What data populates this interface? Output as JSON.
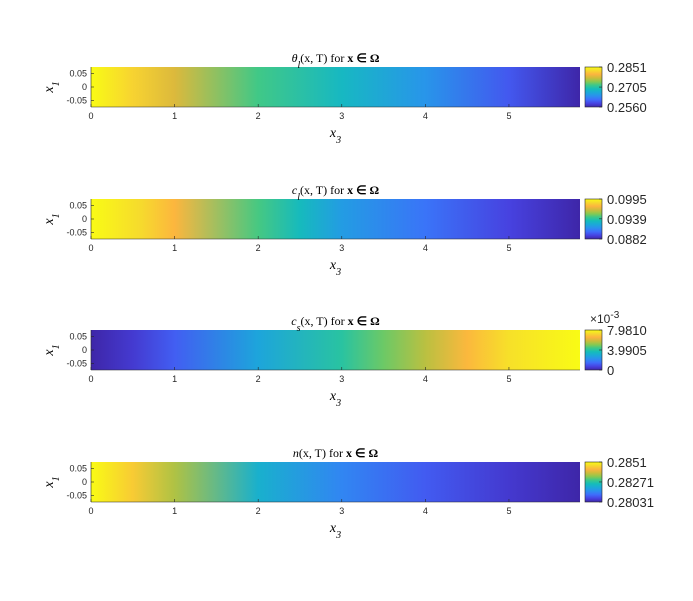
{
  "chart_data": [
    {
      "type": "heatmap",
      "title": "θ_l(x, T) for x ∈ Ω",
      "title_parts": {
        "symbol": "θ",
        "sub": "l",
        "args": "(x, T)",
        "for_text": "for",
        "set_text": "x ∈ Ω"
      },
      "xlabel": "x3",
      "xlabel_parts": {
        "var": "x",
        "sub": "3"
      },
      "ylabel": "x1",
      "ylabel_parts": {
        "var": "x",
        "sub": "1"
      },
      "xlim": [
        0,
        5.85
      ],
      "ylim": [
        -0.075,
        0.075
      ],
      "x_ticks": [
        "0",
        "1",
        "2",
        "3",
        "4",
        "5"
      ],
      "y_ticks": [
        "0.05",
        "0",
        "-0.05"
      ],
      "colorbar": {
        "min": 0.256,
        "max": 0.2851,
        "ticks": [
          "0.2851",
          "0.2705",
          "0.2560"
        ],
        "multiplier": ""
      },
      "profile_x": [
        0,
        0.5,
        1,
        2,
        3,
        4,
        5,
        5.85
      ],
      "profile_values": [
        0.2851,
        0.282,
        0.278,
        0.272,
        0.2685,
        0.2645,
        0.26,
        0.256
      ]
    },
    {
      "type": "heatmap",
      "title": "c_l(x, T) for x ∈ Ω",
      "title_parts": {
        "symbol": "c",
        "sub": "l",
        "args": "(x, T)",
        "for_text": "for",
        "set_text": "x ∈ Ω"
      },
      "xlabel": "x3",
      "xlabel_parts": {
        "var": "x",
        "sub": "3"
      },
      "ylabel": "x1",
      "ylabel_parts": {
        "var": "x",
        "sub": "1"
      },
      "xlim": [
        0,
        5.85
      ],
      "ylim": [
        -0.075,
        0.075
      ],
      "x_ticks": [
        "0",
        "1",
        "2",
        "3",
        "4",
        "5"
      ],
      "y_ticks": [
        "0.05",
        "0",
        "-0.05"
      ],
      "colorbar": {
        "min": 0.0882,
        "max": 0.0995,
        "ticks": [
          "0.0995",
          "0.0939",
          "0.0882"
        ],
        "multiplier": ""
      },
      "profile_x": [
        0,
        0.6,
        1,
        2,
        2.5,
        3,
        4,
        5,
        5.85
      ],
      "profile_values": [
        0.0995,
        0.0985,
        0.0975,
        0.0945,
        0.0932,
        0.0918,
        0.0905,
        0.0892,
        0.0882
      ]
    },
    {
      "type": "heatmap",
      "title": "c_s(x, T) for x ∈ Ω",
      "title_parts": {
        "symbol": "c",
        "sub": "s",
        "args": "(x, T)",
        "for_text": "for",
        "set_text": "x ∈ Ω"
      },
      "xlabel": "x3",
      "xlabel_parts": {
        "var": "x",
        "sub": "3"
      },
      "ylabel": "x1",
      "ylabel_parts": {
        "var": "x",
        "sub": "1"
      },
      "xlim": [
        0,
        5.85
      ],
      "ylim": [
        -0.075,
        0.075
      ],
      "x_ticks": [
        "0",
        "1",
        "2",
        "3",
        "4",
        "5"
      ],
      "y_ticks": [
        "0.05",
        "0",
        "-0.05"
      ],
      "colorbar": {
        "min": 0,
        "max": 7.981,
        "ticks": [
          "7.9810",
          "3.9905",
          "0"
        ],
        "multiplier": "×10",
        "multiplier_exp": "-3"
      },
      "profile_x": [
        0,
        0.5,
        1,
        2,
        3,
        3.5,
        4,
        4.5,
        5,
        5.85
      ],
      "profile_values": [
        0,
        0.5,
        1.2,
        2.8,
        4.0,
        4.8,
        5.6,
        6.6,
        7.4,
        7.981
      ]
    },
    {
      "type": "heatmap",
      "title": "n(x, T) for x ∈ Ω",
      "title_parts": {
        "symbol": "n",
        "sub": "",
        "args": "(x, T)",
        "for_text": "for",
        "set_text": "x ∈ Ω"
      },
      "xlabel": "x3",
      "xlabel_parts": {
        "var": "x",
        "sub": "3"
      },
      "ylabel": "x1",
      "ylabel_parts": {
        "var": "x",
        "sub": "1"
      },
      "xlim": [
        0,
        5.85
      ],
      "ylim": [
        -0.075,
        0.075
      ],
      "x_ticks": [
        "0",
        "1",
        "2",
        "3",
        "4",
        "5"
      ],
      "y_ticks": [
        "0.05",
        "0",
        "-0.05"
      ],
      "colorbar": {
        "min": 0.28031,
        "max": 0.2851,
        "ticks": [
          "0.2851",
          "0.28271",
          "0.28031"
        ],
        "multiplier": ""
      },
      "profile_x": [
        0,
        0.5,
        1,
        2,
        3,
        4,
        5,
        5.85
      ],
      "profile_values": [
        0.2851,
        0.2845,
        0.2836,
        0.2822,
        0.2815,
        0.281,
        0.2806,
        0.28031
      ]
    }
  ]
}
